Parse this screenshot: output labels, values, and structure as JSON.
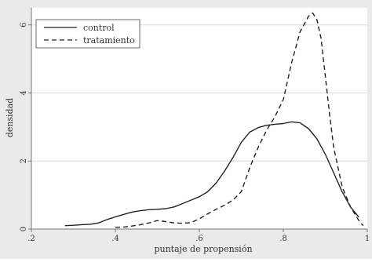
{
  "chart_data": {
    "type": "line",
    "xlabel": "puntaje de propensión",
    "ylabel": "densidad",
    "xlim": [
      0.2,
      1.0
    ],
    "ylim": [
      0,
      6.5
    ],
    "x_ticks": [
      {
        "value": 0.2,
        "label": ".2"
      },
      {
        "value": 0.4,
        "label": ".4"
      },
      {
        "value": 0.6,
        "label": ".6"
      },
      {
        "value": 0.8,
        "label": ".8"
      },
      {
        "value": 1.0,
        "label": "1"
      }
    ],
    "y_ticks": [
      {
        "value": 0,
        "label": "0"
      },
      {
        "value": 2,
        "label": "2"
      },
      {
        "value": 4,
        "label": "4"
      },
      {
        "value": 6,
        "label": "6"
      }
    ],
    "grid": "horizontal",
    "legend_position": "top-left",
    "colors": {
      "plot_bg": "#ffffff",
      "outer_bg": "#eaeaea",
      "grid": "#dcdcdc",
      "axis": "#777777",
      "line": "#222222"
    },
    "series": [
      {
        "name": "control",
        "style": "solid",
        "x": [
          0.28,
          0.3,
          0.32,
          0.34,
          0.36,
          0.38,
          0.4,
          0.42,
          0.44,
          0.46,
          0.48,
          0.5,
          0.52,
          0.54,
          0.56,
          0.58,
          0.6,
          0.62,
          0.64,
          0.66,
          0.68,
          0.7,
          0.72,
          0.74,
          0.76,
          0.78,
          0.8,
          0.82,
          0.84,
          0.86,
          0.88,
          0.9,
          0.92,
          0.94,
          0.96,
          0.98
        ],
        "y": [
          0.1,
          0.11,
          0.13,
          0.14,
          0.18,
          0.28,
          0.36,
          0.43,
          0.5,
          0.54,
          0.57,
          0.58,
          0.6,
          0.65,
          0.75,
          0.85,
          0.95,
          1.1,
          1.35,
          1.7,
          2.1,
          2.55,
          2.85,
          2.98,
          3.05,
          3.08,
          3.1,
          3.15,
          3.12,
          2.95,
          2.65,
          2.2,
          1.65,
          1.1,
          0.65,
          0.35
        ]
      },
      {
        "name": "tratamiento",
        "style": "dashed",
        "x": [
          0.4,
          0.42,
          0.44,
          0.46,
          0.48,
          0.5,
          0.52,
          0.54,
          0.56,
          0.58,
          0.6,
          0.62,
          0.64,
          0.66,
          0.68,
          0.7,
          0.72,
          0.74,
          0.76,
          0.78,
          0.8,
          0.82,
          0.84,
          0.86,
          0.87,
          0.88,
          0.89,
          0.9,
          0.91,
          0.92,
          0.94,
          0.96,
          0.98,
          0.99
        ],
        "y": [
          0.05,
          0.06,
          0.09,
          0.13,
          0.18,
          0.25,
          0.22,
          0.18,
          0.17,
          0.19,
          0.3,
          0.45,
          0.58,
          0.7,
          0.85,
          1.1,
          1.8,
          2.4,
          2.9,
          3.3,
          3.8,
          4.9,
          5.8,
          6.25,
          6.35,
          6.15,
          5.6,
          4.5,
          3.4,
          2.4,
          1.25,
          0.65,
          0.25,
          0.1
        ]
      }
    ]
  }
}
